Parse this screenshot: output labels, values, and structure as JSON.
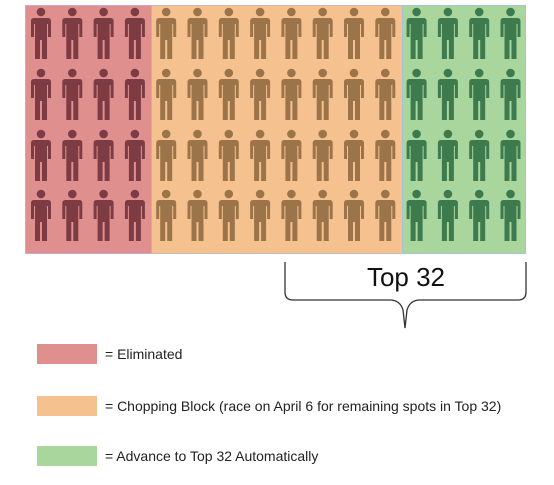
{
  "diagram": {
    "groups": [
      {
        "id": "eliminated",
        "columns": 4,
        "rows": 4,
        "fill": "#e08f8f",
        "icon_color": "#7d3b43"
      },
      {
        "id": "chopping_block",
        "columns": 8,
        "rows": 4,
        "fill": "#f5c18f",
        "icon_color": "#9c7449"
      },
      {
        "id": "advance",
        "columns": 4,
        "rows": 4,
        "fill": "#a8d69c",
        "icon_color": "#3d7a4e"
      }
    ],
    "icon": "person-icon",
    "bracket_label": "Top 32"
  },
  "legend": [
    {
      "color": "#e08f8f",
      "text": "= Eliminated"
    },
    {
      "color": "#f5c18f",
      "text": "= Chopping Block (race on April 6 for remaining spots in Top 32)"
    },
    {
      "color": "#a8d69c",
      "text": "= Advance to Top 32 Automatically"
    }
  ]
}
